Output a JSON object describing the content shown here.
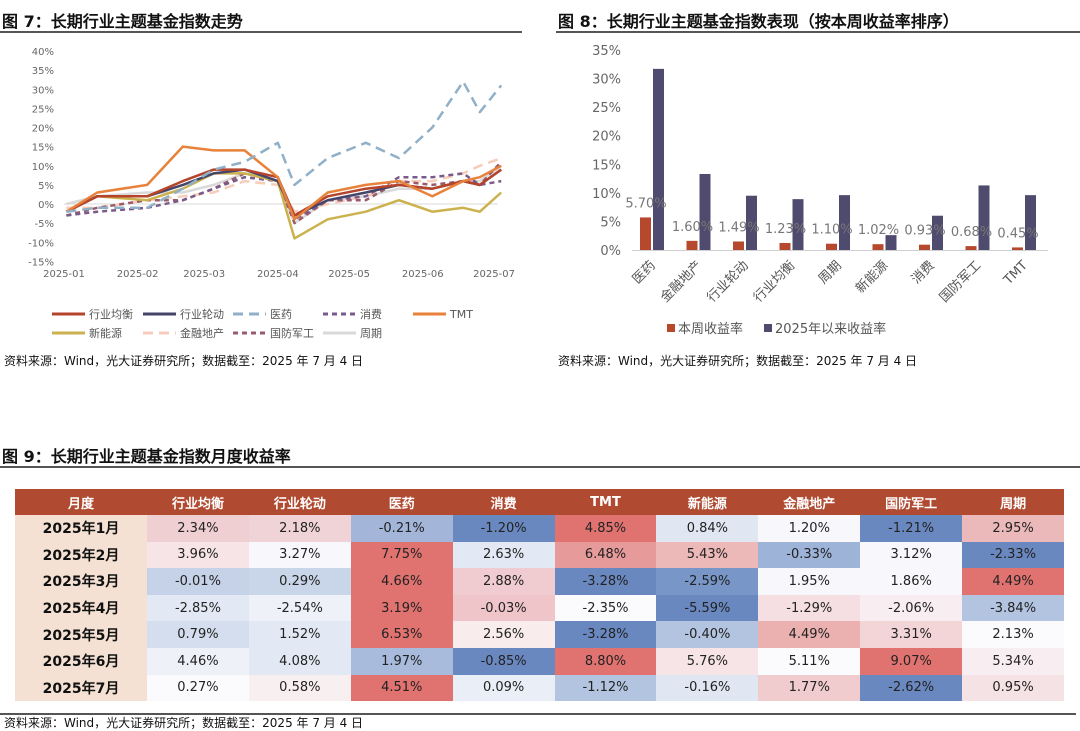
{
  "fig7": {
    "title": "图 7：长期行业主题基金指数走势",
    "source": "资料来源：Wind，光大证券研究所；数据截至：2025 年 7 月 4 日"
  },
  "fig8": {
    "title": "图 8：长期行业主题基金指数表现（按本周收益率排序）",
    "source": "资料来源：Wind，光大证券研究所；数据截至：2025 年 7 月 4 日"
  },
  "fig9": {
    "title": "图 9：长期行业主题基金指数月度收益率",
    "source": "资料来源：Wind，光大证券研究所；数据截至：2025 年 7 月 4 日"
  },
  "chart_data": [
    {
      "type": "line",
      "ylim": [
        -15,
        40
      ],
      "yticks": [
        "40%",
        "35%",
        "30%",
        "25%",
        "20%",
        "15%",
        "10%",
        "5%",
        "0%",
        "-5%",
        "-10%",
        "-15%"
      ],
      "ytick_values": [
        40,
        35,
        30,
        25,
        20,
        15,
        10,
        5,
        0,
        -5,
        -10,
        -15
      ],
      "xticks": [
        "2025-01",
        "2025-02",
        "2025-03",
        "2025-04",
        "2025-05",
        "2025-06",
        "2025-07"
      ],
      "legend": "bottom",
      "x": [
        "2025-01-02",
        "2025-01-15",
        "2025-02-05",
        "2025-02-20",
        "2025-03-05",
        "2025-03-18",
        "2025-04-01",
        "2025-04-08",
        "2025-04-22",
        "2025-05-08",
        "2025-05-22",
        "2025-06-05",
        "2025-06-18",
        "2025-06-25",
        "2025-07-04"
      ],
      "series": [
        {
          "name": "行业均衡",
          "color": "#b5442a",
          "dash": "",
          "values": [
            -2,
            2,
            2,
            6,
            9,
            9,
            7,
            -3,
            2,
            4,
            5,
            4,
            6,
            5,
            9
          ]
        },
        {
          "name": "行业轮动",
          "color": "#45456a",
          "dash": "",
          "values": [
            -2,
            2,
            2,
            5,
            8,
            9,
            6,
            -3,
            1,
            3,
            5,
            4,
            6,
            5,
            9
          ]
        },
        {
          "name": "医药",
          "color": "#8fb0c8",
          "dash": "10 6",
          "values": [
            -2,
            -1,
            -1,
            4,
            9,
            11,
            16,
            5,
            12,
            16,
            12,
            20,
            32,
            24,
            31
          ]
        },
        {
          "name": "消费",
          "color": "#7a5a8c",
          "dash": "5 4",
          "values": [
            -3,
            -2,
            -1,
            1,
            4,
            7,
            6,
            -4,
            1,
            2,
            7,
            7,
            8,
            5,
            6
          ]
        },
        {
          "name": "TMT",
          "color": "#e8823a",
          "dash": "",
          "values": [
            -2,
            3,
            5,
            15,
            14,
            14,
            7,
            -4,
            3,
            5,
            6,
            2,
            6,
            7,
            10
          ]
        },
        {
          "name": "新能源",
          "color": "#cbb24e",
          "dash": "",
          "values": [
            -2,
            2,
            1,
            4,
            8,
            8,
            6,
            -9,
            -4,
            -2,
            1,
            -2,
            -1,
            -2,
            3
          ]
        },
        {
          "name": "金融地产",
          "color": "#f5cdb8",
          "dash": "10 6",
          "values": [
            -1,
            -1,
            1,
            2,
            3,
            6,
            5,
            -2,
            0,
            2,
            6,
            6,
            8,
            10,
            12
          ]
        },
        {
          "name": "国防军工",
          "color": "#9a5a6c",
          "dash": "5 4",
          "values": [
            -3,
            -1,
            1,
            1,
            4,
            8,
            6,
            -5,
            1,
            1,
            6,
            5,
            6,
            5,
            11
          ]
        },
        {
          "name": "周期",
          "color": "#d9d9d9",
          "dash": "",
          "values": [
            0,
            2,
            3,
            3,
            5,
            8,
            6,
            -5,
            1,
            2,
            4,
            4,
            6,
            6,
            10
          ]
        }
      ]
    },
    {
      "type": "bar",
      "ylim": [
        0,
        35
      ],
      "yticks": [
        "35%",
        "30%",
        "25%",
        "20%",
        "15%",
        "10%",
        "5%",
        "0%"
      ],
      "ytick_values": [
        35,
        30,
        25,
        20,
        15,
        10,
        5,
        0
      ],
      "categories": [
        "医药",
        "金融地产",
        "行业轮动",
        "行业均衡",
        "周期",
        "新能源",
        "消费",
        "国防军工",
        "TMT"
      ],
      "legend": "bottom",
      "series": [
        {
          "name": "本周收益率",
          "color": "#b5482d",
          "values": [
            5.7,
            1.6,
            1.49,
            1.23,
            1.1,
            1.02,
            0.93,
            0.68,
            0.45
          ],
          "labels": [
            "5.70%",
            "1.60%",
            "1.49%",
            "1.23%",
            "1.10%",
            "1.02%",
            "0.93%",
            "0.68%",
            "0.45%"
          ]
        },
        {
          "name": "2025年以来收益率",
          "color": "#4f4b6e",
          "values": [
            31.7,
            13.3,
            9.5,
            8.9,
            9.6,
            2.6,
            6.0,
            11.3,
            9.6
          ]
        }
      ]
    },
    {
      "type": "table",
      "columns": [
        "月度",
        "行业均衡",
        "行业轮动",
        "医药",
        "消费",
        "TMT",
        "新能源",
        "金融地产",
        "国防军工",
        "周期"
      ],
      "rows": [
        {
          "month": "2025年1月",
          "cells": [
            "2.34%",
            "2.18%",
            "-0.21%",
            "-1.20%",
            "4.85%",
            "0.84%",
            "1.20%",
            "-1.21%",
            "2.95%"
          ],
          "colors": [
            "#f0cfd2",
            "#f0d3d6",
            "#a3b6da",
            "#6a88c0",
            "#e07370",
            "#e0e7f3",
            "#f8f8fc",
            "#6a88c0",
            "#ebb9b9"
          ]
        },
        {
          "month": "2025年2月",
          "cells": [
            "3.96%",
            "3.27%",
            "7.75%",
            "2.63%",
            "6.48%",
            "5.43%",
            "-0.33%",
            "3.12%",
            "-2.33%"
          ],
          "colors": [
            "#f6e4e6",
            "#f8f8fc",
            "#e07370",
            "#e3e9f4",
            "#e69a99",
            "#ecb8b8",
            "#9db3d8",
            "#f8f8fc",
            "#6a88c0"
          ]
        },
        {
          "month": "2025年3月",
          "cells": [
            "-0.01%",
            "0.29%",
            "4.66%",
            "2.88%",
            "-3.28%",
            "-2.59%",
            "1.95%",
            "1.86%",
            "4.49%"
          ],
          "colors": [
            "#c5d2e7",
            "#c9d5e8",
            "#e07370",
            "#f0ccd0",
            "#6a88c0",
            "#7896c8",
            "#f8f8fc",
            "#f8f8fc",
            "#e07370"
          ]
        },
        {
          "month": "2025年4月",
          "cells": [
            "-2.85%",
            "-2.54%",
            "3.19%",
            "-0.03%",
            "-2.35%",
            "-5.59%",
            "-1.29%",
            "-2.06%",
            "-3.84%"
          ],
          "colors": [
            "#e3e9f4",
            "#eef1f8",
            "#e07370",
            "#efc5c9",
            "#fbfbfd",
            "#6a88c0",
            "#f5dfe2",
            "#f8eef1",
            "#b2c4e0"
          ]
        },
        {
          "month": "2025年5月",
          "cells": [
            "0.79%",
            "1.52%",
            "6.53%",
            "2.56%",
            "-3.28%",
            "-0.40%",
            "4.49%",
            "3.31%",
            "2.13%"
          ],
          "colors": [
            "#d5deee",
            "#e3e9f4",
            "#e07370",
            "#f8eced",
            "#6a88c0",
            "#b2c4e0",
            "#ebb0b0",
            "#f3d5d8",
            "#fbfbfd"
          ]
        },
        {
          "month": "2025年6月",
          "cells": [
            "4.46%",
            "4.08%",
            "1.97%",
            "-0.85%",
            "8.80%",
            "5.76%",
            "5.11%",
            "9.07%",
            "5.34%"
          ],
          "colors": [
            "#eef1f8",
            "#e3e9f4",
            "#a8bbdc",
            "#6a88c0",
            "#e07370",
            "#f6e4e6",
            "#fbfbfd",
            "#e07370",
            "#f8eef1"
          ]
        },
        {
          "month": "2025年7月",
          "cells": [
            "0.27%",
            "0.58%",
            "4.51%",
            "0.09%",
            "-1.12%",
            "-0.16%",
            "1.77%",
            "-2.62%",
            "0.95%"
          ],
          "colors": [
            "#fbfbfd",
            "#f8eff1",
            "#e07370",
            "#eaeef7",
            "#b2c4e0",
            "#e0e7f3",
            "#f0cccf",
            "#6a88c0",
            "#f5e2e5"
          ]
        }
      ]
    }
  ]
}
